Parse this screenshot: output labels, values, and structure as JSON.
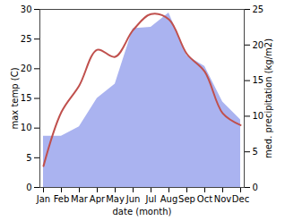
{
  "chart_data": {
    "type": "line",
    "x_label": "date (month)",
    "y_label": "max temp (C)",
    "y2_label": "med. precipitation (kg/m2)",
    "categories": [
      "Jan",
      "Feb",
      "Mar",
      "Apr",
      "May",
      "Jun",
      "Jul",
      "Aug",
      "Sep",
      "Oct",
      "Nov",
      "Dec"
    ],
    "series": [
      {
        "name": "med. precipitation (kg/m2)",
        "type": "area",
        "axis": "y2",
        "color": "#aab3f0",
        "values": [
          7.2,
          7.2,
          8.5,
          12.5,
          14.5,
          22.3,
          22.5,
          24.5,
          18.5,
          17,
          12,
          9.5
        ]
      },
      {
        "name": "max temp (C)",
        "type": "line",
        "color": "#c0504d",
        "values": [
          3.6,
          12.7,
          17.2,
          23.2,
          22,
          26.5,
          29.2,
          28.3,
          22.5,
          19.5,
          12.5,
          10.5
        ]
      }
    ],
    "ylim": [
      0,
      30
    ],
    "yticks": [
      0,
      5,
      10,
      15,
      20,
      25,
      30
    ],
    "y2lim": [
      0,
      25
    ],
    "y2ticks": [
      0,
      5,
      10,
      15,
      20,
      25
    ],
    "grid": false
  }
}
